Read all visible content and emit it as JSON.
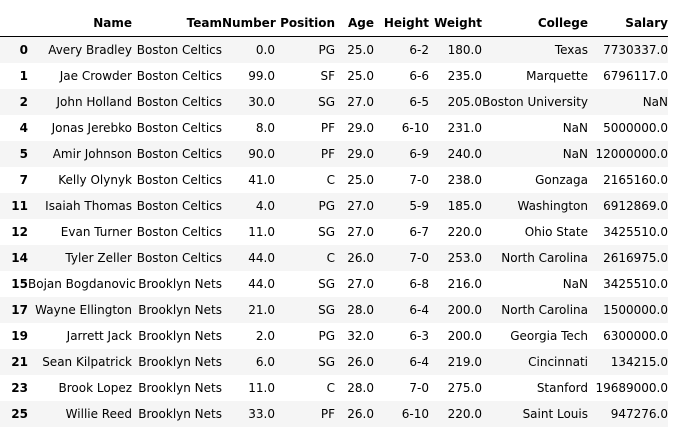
{
  "table": {
    "columns": [
      "",
      "Name",
      "Team",
      "Number",
      "Position",
      "Age",
      "Height",
      "Weight",
      "College",
      "Salary"
    ],
    "rows": [
      {
        "index": "0",
        "cells": [
          "Avery Bradley",
          "Boston Celtics",
          "0.0",
          "PG",
          "25.0",
          "6-2",
          "180.0",
          "Texas",
          "7730337.0"
        ]
      },
      {
        "index": "1",
        "cells": [
          "Jae Crowder",
          "Boston Celtics",
          "99.0",
          "SF",
          "25.0",
          "6-6",
          "235.0",
          "Marquette",
          "6796117.0"
        ]
      },
      {
        "index": "2",
        "cells": [
          "John Holland",
          "Boston Celtics",
          "30.0",
          "SG",
          "27.0",
          "6-5",
          "205.0",
          "Boston University",
          "NaN"
        ]
      },
      {
        "index": "4",
        "cells": [
          "Jonas Jerebko",
          "Boston Celtics",
          "8.0",
          "PF",
          "29.0",
          "6-10",
          "231.0",
          "NaN",
          "5000000.0"
        ]
      },
      {
        "index": "5",
        "cells": [
          "Amir Johnson",
          "Boston Celtics",
          "90.0",
          "PF",
          "29.0",
          "6-9",
          "240.0",
          "NaN",
          "12000000.0"
        ]
      },
      {
        "index": "7",
        "cells": [
          "Kelly Olynyk",
          "Boston Celtics",
          "41.0",
          "C",
          "25.0",
          "7-0",
          "238.0",
          "Gonzaga",
          "2165160.0"
        ]
      },
      {
        "index": "11",
        "cells": [
          "Isaiah Thomas",
          "Boston Celtics",
          "4.0",
          "PG",
          "27.0",
          "5-9",
          "185.0",
          "Washington",
          "6912869.0"
        ]
      },
      {
        "index": "12",
        "cells": [
          "Evan Turner",
          "Boston Celtics",
          "11.0",
          "SG",
          "27.0",
          "6-7",
          "220.0",
          "Ohio State",
          "3425510.0"
        ]
      },
      {
        "index": "14",
        "cells": [
          "Tyler Zeller",
          "Boston Celtics",
          "44.0",
          "C",
          "26.0",
          "7-0",
          "253.0",
          "North Carolina",
          "2616975.0"
        ]
      },
      {
        "index": "15",
        "cells": [
          "Bojan Bogdanovic",
          "Brooklyn Nets",
          "44.0",
          "SG",
          "27.0",
          "6-8",
          "216.0",
          "NaN",
          "3425510.0"
        ]
      },
      {
        "index": "17",
        "cells": [
          "Wayne Ellington",
          "Brooklyn Nets",
          "21.0",
          "SG",
          "28.0",
          "6-4",
          "200.0",
          "North Carolina",
          "1500000.0"
        ]
      },
      {
        "index": "19",
        "cells": [
          "Jarrett Jack",
          "Brooklyn Nets",
          "2.0",
          "PG",
          "32.0",
          "6-3",
          "200.0",
          "Georgia Tech",
          "6300000.0"
        ]
      },
      {
        "index": "21",
        "cells": [
          "Sean Kilpatrick",
          "Brooklyn Nets",
          "6.0",
          "SG",
          "26.0",
          "6-4",
          "219.0",
          "Cincinnati",
          "134215.0"
        ]
      },
      {
        "index": "23",
        "cells": [
          "Brook Lopez",
          "Brooklyn Nets",
          "11.0",
          "C",
          "28.0",
          "7-0",
          "275.0",
          "Stanford",
          "19689000.0"
        ]
      },
      {
        "index": "25",
        "cells": [
          "Willie Reed",
          "Brooklyn Nets",
          "33.0",
          "PF",
          "26.0",
          "6-10",
          "220.0",
          "Saint Louis",
          "947276.0"
        ]
      }
    ]
  }
}
